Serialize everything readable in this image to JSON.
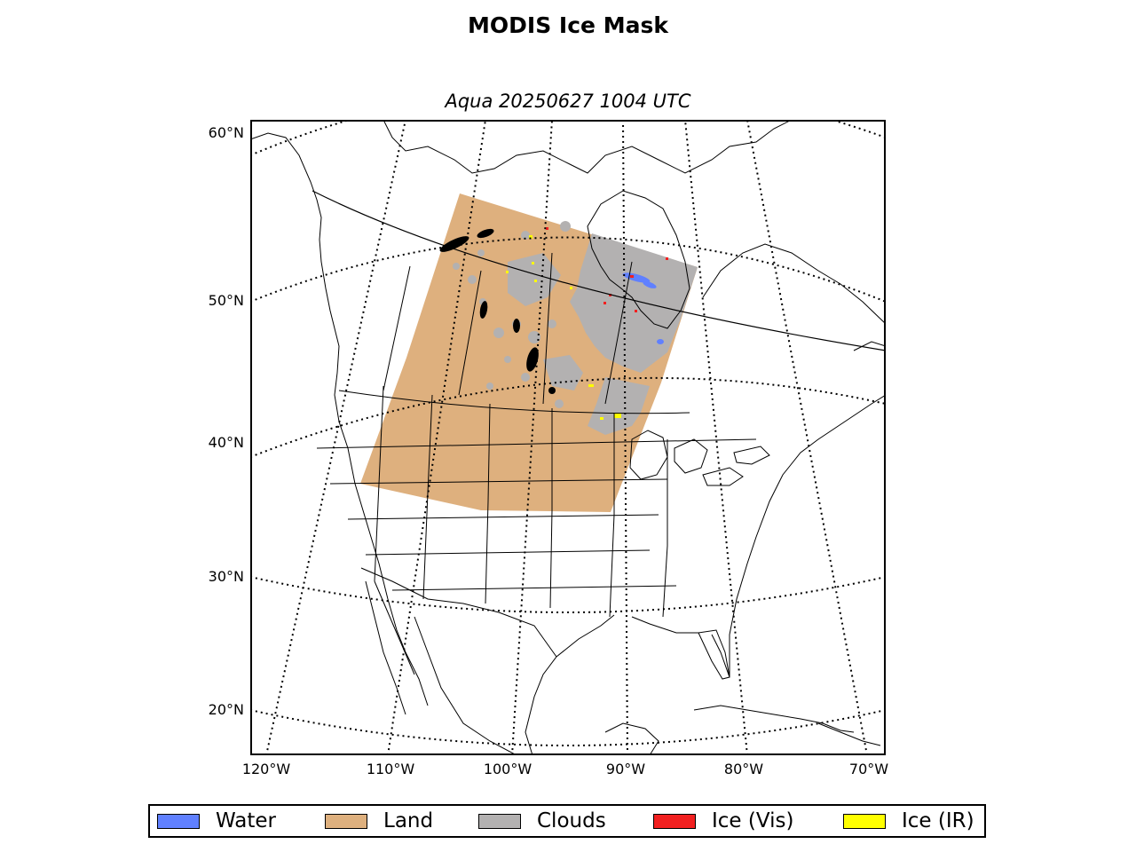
{
  "title": "MODIS Ice Mask",
  "subtitle": "Aqua 20250627 1004 UTC",
  "lat_labels": [
    "60°N",
    "50°N",
    "40°N",
    "30°N",
    "20°N"
  ],
  "lon_labels": [
    "120°W",
    "110°W",
    "100°W",
    "90°W",
    "80°W",
    "70°W"
  ],
  "legend": [
    {
      "label": "Water",
      "color": "#6080ff"
    },
    {
      "label": "Land",
      "color": "#deb07e"
    },
    {
      "label": "Clouds",
      "color": "#b3b1b1"
    },
    {
      "label": "Ice (Vis)",
      "color": "#f22020"
    },
    {
      "label": "Ice (IR)",
      "color": "#ffff00"
    }
  ],
  "colors": {
    "land": "#deb07e",
    "clouds": "#b3b1b1",
    "water": "#6080ff",
    "ice_vis": "#f22020",
    "ice_ir": "#ffff00",
    "coastline": "#000000",
    "graticule": "#000000"
  }
}
